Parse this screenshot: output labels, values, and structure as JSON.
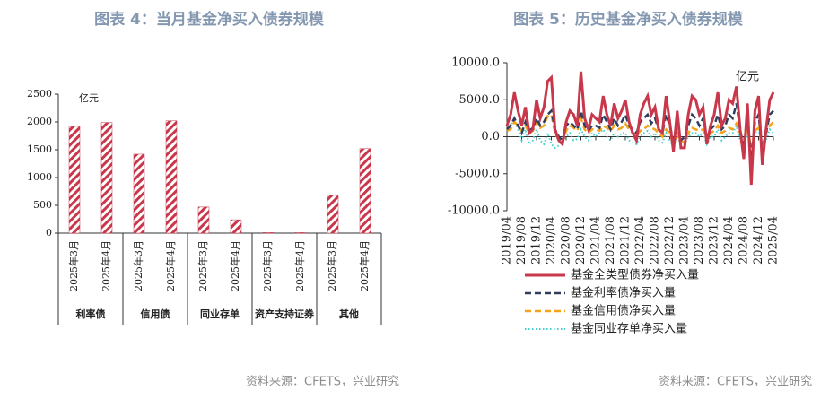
{
  "chart_data": [
    {
      "type": "bar",
      "title": "图表 4：当月基金净买入债券规模",
      "unit_label": "亿元",
      "categories": [
        "2025年3月",
        "2025年4月",
        "2025年3月",
        "2025年4月",
        "2025年3月",
        "2025年4月",
        "2025年3月",
        "2025年4月",
        "2025年3月",
        "2025年4月"
      ],
      "group_labels": [
        "利率债",
        "信用债",
        "同业存单",
        "资产支持证券",
        "其他"
      ],
      "values": [
        1920,
        1990,
        1420,
        2020,
        470,
        240,
        10,
        10,
        680,
        1520
      ],
      "color": "#c9374b",
      "ylim": [
        0,
        2500
      ],
      "yticks": [
        0,
        500,
        1000,
        1500,
        2000,
        2500
      ],
      "source": "资料来源：CFETS，兴业研究"
    },
    {
      "type": "line",
      "title": "图表 5：历史基金净买入债券规模",
      "unit_label": "亿元",
      "categories": [
        "2019/04",
        null,
        null,
        null,
        "2019/08",
        null,
        null,
        null,
        "2019/12",
        null,
        null,
        null,
        "2020/04",
        null,
        null,
        null,
        "2020/08",
        null,
        null,
        null,
        "2020/12",
        null,
        null,
        null,
        "2021/04",
        null,
        null,
        null,
        "2021/08",
        null,
        null,
        null,
        "2021/12",
        null,
        null,
        null,
        "2022/04",
        null,
        null,
        null,
        "2022/08",
        null,
        null,
        null,
        "2022/12",
        null,
        null,
        null,
        "2023/04",
        null,
        null,
        null,
        "2023/08",
        null,
        null,
        null,
        "2023/12",
        null,
        null,
        null,
        "2024/04",
        null,
        null,
        null,
        "2024/08",
        null,
        null,
        null,
        "2024/12",
        null,
        null,
        null,
        "2025/04"
      ],
      "series": [
        {
          "name": "基金全类型债券净买入量",
          "color": "#c9374b",
          "style": "solid",
          "values": [
            1500,
            3000,
            6000,
            3500,
            1500,
            4000,
            500,
            1000,
            5000,
            2500,
            4000,
            7500,
            8000,
            1000,
            -500,
            -1000,
            2000,
            3500,
            3000,
            1500,
            8800,
            2500,
            1000,
            3000,
            2500,
            2000,
            5500,
            3000,
            1500,
            4500,
            2500,
            3500,
            5000,
            2000,
            500,
            -500,
            3000,
            4500,
            5500,
            3000,
            4000,
            1000,
            500,
            5500,
            2000,
            -2000,
            3500,
            -1500,
            -1500,
            3000,
            5500,
            5000,
            3000,
            4000,
            -1000,
            1500,
            3000,
            6000,
            1500,
            2500,
            5000,
            4500,
            6800,
            1000,
            -3000,
            4500,
            -6500,
            3500,
            5500,
            -3800,
            1000,
            5000,
            6000
          ]
        },
        {
          "name": "基金利率债净买入量",
          "color": "#2f3e5c",
          "style": "dashed",
          "values": [
            1000,
            1500,
            2500,
            1500,
            500,
            2000,
            800,
            1200,
            2500,
            1500,
            2000,
            3000,
            3500,
            1000,
            0,
            -500,
            1500,
            2000,
            1500,
            1000,
            3500,
            1500,
            800,
            1500,
            1500,
            1200,
            3000,
            2000,
            1000,
            2500,
            1500,
            2000,
            3000,
            1500,
            800,
            500,
            2000,
            2500,
            3000,
            1800,
            2500,
            1000,
            500,
            3000,
            1500,
            -500,
            2000,
            -500,
            0,
            1500,
            3000,
            2500,
            1500,
            2500,
            0,
            1000,
            1500,
            3000,
            1000,
            1500,
            3000,
            2500,
            4500,
            1000,
            -1500,
            2500,
            -3000,
            2000,
            3000,
            -2000,
            500,
            3000,
            3500
          ]
        },
        {
          "name": "基金信用债净买入量",
          "color": "#f5a31a",
          "style": "dashed",
          "values": [
            800,
            1000,
            2000,
            1500,
            800,
            1500,
            500,
            800,
            2000,
            1200,
            1500,
            2800,
            3000,
            500,
            -500,
            -800,
            800,
            1500,
            1200,
            800,
            2500,
            1000,
            500,
            1000,
            1000,
            800,
            1500,
            1200,
            800,
            1500,
            1000,
            1200,
            1800,
            1000,
            500,
            0,
            800,
            1000,
            1500,
            1200,
            1000,
            500,
            0,
            1000,
            500,
            -1000,
            500,
            -500,
            -800,
            500,
            1200,
            1000,
            800,
            1000,
            -500,
            500,
            800,
            1500,
            500,
            800,
            1200,
            1000,
            1800,
            500,
            -1000,
            1200,
            -1500,
            800,
            1200,
            -1000,
            500,
            1500,
            2000
          ]
        },
        {
          "name": "基金同业存单净买入量",
          "color": "#45cfd0",
          "style": "dotted",
          "values": [
            2000,
            1500,
            2500,
            1000,
            -500,
            1000,
            -1000,
            -500,
            1000,
            -500,
            -1000,
            500,
            -1000,
            -1500,
            -1200,
            -500,
            0,
            500,
            -500,
            -300,
            1000,
            0,
            -500,
            500,
            0,
            500,
            1000,
            0,
            -500,
            500,
            0,
            500,
            500,
            -500,
            -800,
            -1000,
            0,
            500,
            800,
            0,
            500,
            -500,
            -800,
            500,
            -500,
            -1500,
            0,
            -1000,
            -1000,
            0,
            500,
            500,
            0,
            500,
            -1000,
            0,
            0,
            1000,
            -500,
            0,
            500,
            500,
            1500,
            -500,
            -1500,
            500,
            -2000,
            500,
            1000,
            -1500,
            -500,
            1000,
            500
          ]
        }
      ],
      "ylim": [
        -10000,
        10000
      ],
      "yticks": [
        {
          "value": -10000,
          "label": "-10000.0"
        },
        {
          "value": -5000,
          "label": "-5000.0"
        },
        {
          "value": 0,
          "label": "0.0"
        },
        {
          "value": 5000,
          "label": "5000.0"
        },
        {
          "value": 10000,
          "label": "10000.0"
        }
      ],
      "source": "资料来源：CFETS，兴业研究"
    }
  ]
}
